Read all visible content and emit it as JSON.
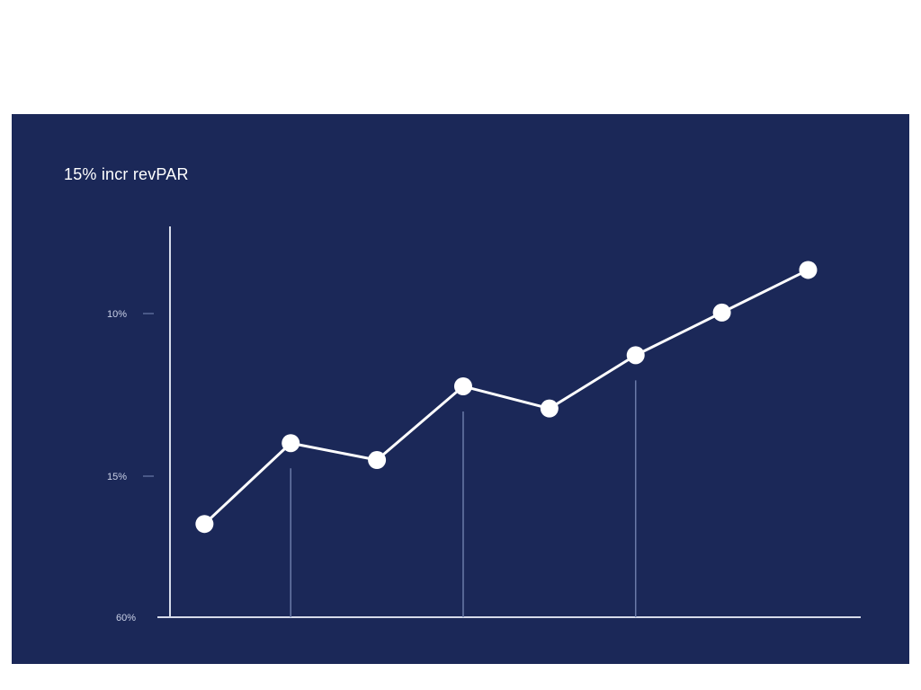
{
  "chart_data": {
    "type": "line",
    "title": "15% incr revPAR",
    "xlabel": "",
    "ylabel": "",
    "y_tick_labels": [
      "10%",
      "15%",
      "60%"
    ],
    "x": [
      1,
      2,
      3,
      4,
      5,
      6,
      7,
      8
    ],
    "series": [
      {
        "values": [
          0.35,
          1.26,
          1.07,
          1.9,
          1.65,
          2.25,
          2.73,
          3.21
        ]
      }
    ],
    "ylim": [
      -0.7,
      3.7
    ],
    "xlim": [
      0.6,
      8.6
    ],
    "drop_lines_at_index": [
      1,
      3,
      5
    ],
    "grid": false,
    "legend": "none",
    "colors": {
      "background": "#1b2858",
      "line": "#ffffff",
      "axis": "#d6dbea",
      "drop_line": "#6b7aa8",
      "text": "#c9d0e6"
    }
  }
}
